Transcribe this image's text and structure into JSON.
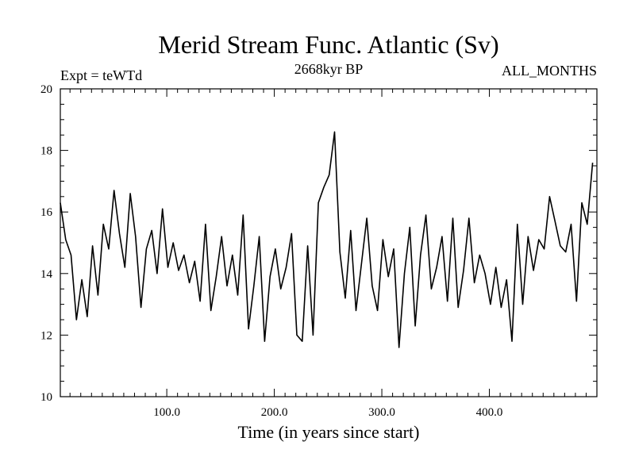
{
  "chart_data": {
    "type": "line",
    "title": "Merid Stream Func. Atlantic (Sv)",
    "subtitle_left": "Expt = teWTd",
    "subtitle_center": "2668kyr BP",
    "subtitle_right": "ALL_MONTHS",
    "xlabel": "Time (in years since start)",
    "ylabel": "",
    "xlim": [
      1,
      500
    ],
    "ylim": [
      10,
      20
    ],
    "x_ticks": [
      100,
      200,
      300,
      400
    ],
    "x_tick_labels": [
      "100.0",
      "200.0",
      "300.0",
      "400.0"
    ],
    "y_ticks": [
      10,
      12,
      14,
      16,
      18,
      20
    ],
    "y_tick_labels": [
      "10",
      "12",
      "14",
      "16",
      "18",
      "20"
    ],
    "series": [
      {
        "name": "Merid Stream Func. Atlantic",
        "x_start": 1,
        "x_step": 5,
        "values": [
          16.3,
          15.1,
          14.6,
          12.5,
          13.8,
          12.6,
          14.9,
          13.3,
          15.6,
          14.8,
          16.7,
          15.3,
          14.2,
          16.6,
          15.2,
          12.9,
          14.8,
          15.4,
          14.0,
          16.1,
          14.2,
          15.0,
          14.1,
          14.6,
          13.7,
          14.4,
          13.1,
          15.6,
          12.8,
          13.9,
          15.2,
          13.6,
          14.6,
          13.3,
          15.9,
          12.2,
          13.6,
          15.2,
          11.8,
          13.9,
          14.8,
          13.5,
          14.2,
          15.3,
          12.0,
          11.8,
          14.9,
          12.0,
          16.3,
          16.8,
          17.2,
          18.6,
          14.7,
          13.2,
          15.4,
          12.8,
          14.3,
          15.8,
          13.6,
          12.8,
          15.1,
          13.9,
          14.8,
          11.6,
          14.0,
          15.5,
          12.3,
          14.6,
          15.9,
          13.5,
          14.2,
          15.2,
          13.1,
          15.8,
          12.9,
          14.1,
          15.8,
          13.7,
          14.6,
          14.0,
          13.0,
          14.2,
          12.9,
          13.8,
          11.8,
          15.6,
          13.0,
          15.2,
          14.1,
          15.1,
          14.8,
          16.5,
          15.7,
          14.9,
          14.7,
          15.6,
          13.1,
          16.3,
          15.6,
          17.6
        ]
      }
    ]
  }
}
